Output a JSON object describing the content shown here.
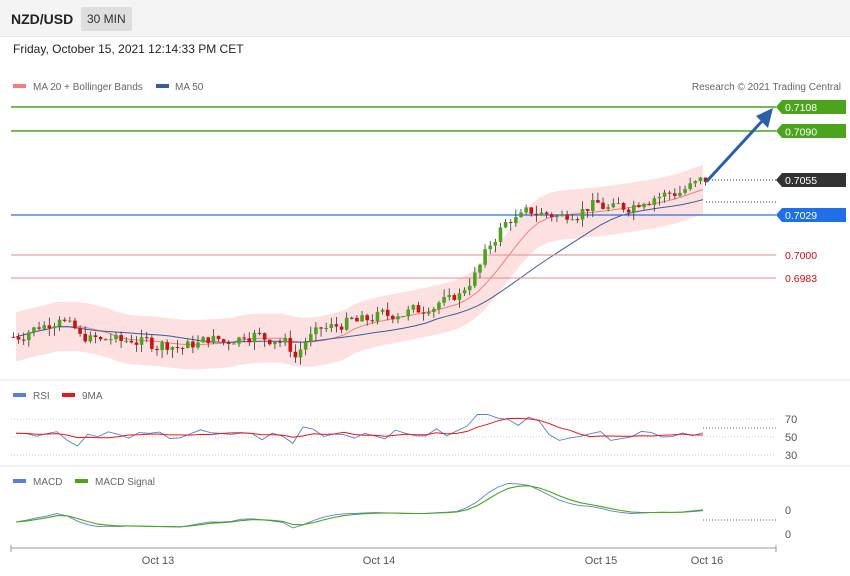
{
  "header": {
    "symbol": "NZD/USD",
    "timeframe": "30 MIN",
    "datetime": "Friday, October 15, 2021 12:14:33 PM CET"
  },
  "legend": {
    "price": [
      {
        "label": "MA 20 + Bollinger Bands",
        "color": "#f08080"
      },
      {
        "label": "MA 50",
        "color": "#3b5b9b"
      }
    ],
    "copyright": "Research © 2021 Trading Central",
    "rsi": [
      {
        "label": "RSI",
        "color": "#5b7fd6"
      },
      {
        "label": "9MA",
        "color": "#e01b1b"
      }
    ],
    "macd": [
      {
        "label": "MACD",
        "color": "#5b7fd6"
      },
      {
        "label": "MACD Signal",
        "color": "#4ca31d"
      }
    ]
  },
  "levels": {
    "resistance_2": "0.7108",
    "resistance_1": "0.7090",
    "current": "0.7055",
    "pivot": "0.7029",
    "support_1": "0.7000",
    "support_2": "0.6983"
  },
  "rsi_ticks": [
    "70",
    "50",
    "30"
  ],
  "macd_ticks": [
    "0",
    "0"
  ],
  "x_labels": [
    "Oct 13",
    "Oct 14",
    "Oct 15",
    "Oct 16"
  ],
  "colors": {
    "resistance": "#4ca31d",
    "pivot": "#2c6fe0",
    "support": "#e06060",
    "current": "#333333",
    "arrow": "#2d5ea8",
    "candle_up": "#4ca31d",
    "candle_down": "#cc1111",
    "band_fill": "#fde0e0"
  },
  "chart_data": {
    "type": "candlestick",
    "symbol": "NZD/USD",
    "interval": "30 MIN",
    "price_levels": [
      0.7108,
      0.709,
      0.7055,
      0.7029,
      0.7,
      0.6983
    ],
    "current_price": 0.7055,
    "x_ticks": [
      "Oct 13",
      "Oct 14",
      "Oct 15",
      "Oct 16"
    ],
    "close_approx": [
      0.694,
      0.6944,
      0.6948,
      0.695,
      0.6955,
      0.6948,
      0.694,
      0.6938,
      0.6937,
      0.6939,
      0.6937,
      0.6938,
      0.6936,
      0.6935,
      0.6934,
      0.6933,
      0.6932,
      0.6935,
      0.6937,
      0.6938,
      0.6936,
      0.6938,
      0.6942,
      0.6941,
      0.6939,
      0.6938,
      0.6936,
      0.6925,
      0.6937,
      0.6943,
      0.6946,
      0.6948,
      0.695,
      0.6951,
      0.6953,
      0.6955,
      0.6956,
      0.6957,
      0.6958,
      0.696,
      0.6962,
      0.6965,
      0.6967,
      0.697,
      0.698,
      0.6992,
      0.7008,
      0.7018,
      0.7026,
      0.7028,
      0.7032,
      0.703,
      0.7029,
      0.7028,
      0.703,
      0.7032,
      0.7036,
      0.7035,
      0.7034,
      0.7035,
      0.7036,
      0.704,
      0.7042,
      0.7044,
      0.7045,
      0.7048,
      0.7052,
      0.7055
    ],
    "projection": {
      "from": 0.7055,
      "to": 0.7108
    }
  }
}
